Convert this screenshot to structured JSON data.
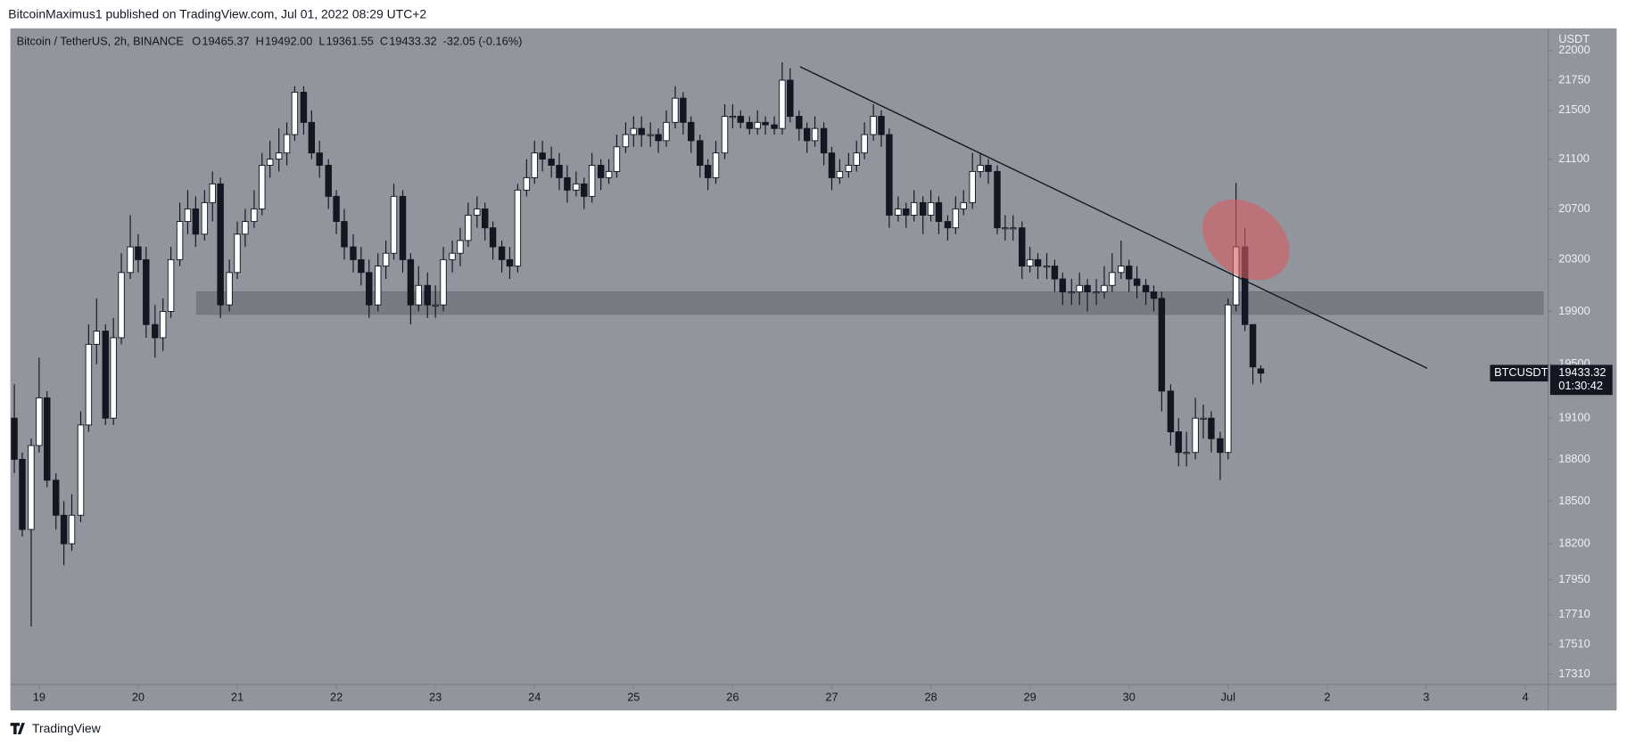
{
  "publisher_line": "BitcoinMaximus1 published on TradingView.com, Jul 01, 2022 08:29 UTC+2",
  "footer": "TradingView",
  "chart_data": {
    "type": "candlestick",
    "title": "Bitcoin / TetherUS, 2h, BINANCE",
    "ohlc_legend": [
      {
        "key": "O",
        "value": "19465.37"
      },
      {
        "key": "H",
        "value": "19492.00"
      },
      {
        "key": "L",
        "value": "19361.55"
      },
      {
        "key": "C",
        "value": "19433.32"
      }
    ],
    "change": "-32.05 (-0.16%)",
    "y_axis_label": "USDT",
    "last_price_label": {
      "symbol": "BTCUSDT",
      "countdown": "01:30:42"
    },
    "log_scale": true,
    "grid": false,
    "up_color": "#ffffff",
    "down_color": "#131722",
    "xlim": [
      18.71,
      34.23
    ],
    "xticks": [
      19,
      20,
      21,
      22,
      23,
      24,
      25,
      26,
      27,
      28,
      29,
      30,
      {
        "value": 31,
        "label": "Jul"
      },
      {
        "value": 32,
        "label": "2"
      },
      {
        "value": 33,
        "label": "3"
      },
      {
        "value": 34,
        "label": "4"
      }
    ],
    "ylim": [
      17241,
      22188
    ],
    "yticks": [
      17310,
      17510,
      17710,
      17950,
      18200,
      18500,
      18800,
      19100,
      19500,
      19900,
      20300,
      20700,
      21100,
      21500,
      21750,
      22000
    ],
    "x": [
      18.75,
      18.83,
      18.92,
      19,
      19.08,
      19.17,
      19.25,
      19.33,
      19.42,
      19.5,
      19.58,
      19.67,
      19.75,
      19.83,
      19.92,
      20,
      20.08,
      20.17,
      20.25,
      20.33,
      20.42,
      20.5,
      20.58,
      20.67,
      20.75,
      20.83,
      20.92,
      21,
      21.08,
      21.17,
      21.25,
      21.33,
      21.42,
      21.5,
      21.58,
      21.67,
      21.75,
      21.83,
      21.92,
      22,
      22.08,
      22.17,
      22.25,
      22.33,
      22.42,
      22.5,
      22.58,
      22.67,
      22.75,
      22.83,
      22.92,
      23,
      23.08,
      23.17,
      23.25,
      23.33,
      23.42,
      23.5,
      23.58,
      23.67,
      23.75,
      23.83,
      23.92,
      24,
      24.08,
      24.17,
      24.25,
      24.33,
      24.42,
      24.5,
      24.58,
      24.67,
      24.75,
      24.83,
      24.92,
      25,
      25.08,
      25.17,
      25.25,
      25.33,
      25.42,
      25.5,
      25.58,
      25.67,
      25.75,
      25.83,
      25.92,
      26,
      26.08,
      26.17,
      26.25,
      26.33,
      26.42,
      26.5,
      26.58,
      26.67,
      26.75,
      26.83,
      26.92,
      27,
      27.08,
      27.17,
      27.25,
      27.33,
      27.42,
      27.5,
      27.58,
      27.67,
      27.75,
      27.83,
      27.92,
      28,
      28.08,
      28.17,
      28.25,
      28.33,
      28.42,
      28.5,
      28.58,
      28.67,
      28.75,
      28.83,
      28.92,
      29,
      29.08,
      29.17,
      29.25,
      29.33,
      29.42,
      29.5,
      29.58,
      29.67,
      29.75,
      29.83,
      29.92,
      30,
      30.08,
      30.17,
      30.25,
      30.33,
      30.42,
      30.5,
      30.58,
      30.67,
      30.75,
      30.83,
      30.92,
      31,
      31.08,
      31.17,
      31.25,
      31.33
    ],
    "open": [
      19100,
      18800,
      18300,
      18900,
      19250,
      18650,
      18400,
      18200,
      18400,
      19050,
      19650,
      19750,
      19100,
      19700,
      20200,
      20400,
      20300,
      19800,
      19700,
      19900,
      20300,
      20600,
      20700,
      20500,
      20750,
      20900,
      19950,
      20200,
      20500,
      20600,
      20700,
      21050,
      21100,
      21150,
      21300,
      21650,
      21400,
      21150,
      21050,
      20800,
      20600,
      20400,
      20300,
      20200,
      19950,
      20250,
      20350,
      20800,
      20300,
      19950,
      20100,
      19950,
      19950,
      20300,
      20350,
      20450,
      20650,
      20700,
      20550,
      20400,
      20300,
      20250,
      20850,
      20950,
      21150,
      21100,
      21050,
      20950,
      20850,
      20900,
      20800,
      21050,
      20950,
      21000,
      21200,
      21300,
      21350,
      21300,
      21300,
      21250,
      21400,
      21600,
      21400,
      21250,
      21050,
      20950,
      21150,
      21450,
      21450,
      21400,
      21350,
      21400,
      21380,
      21350,
      21750,
      21450,
      21350,
      21250,
      21350,
      21150,
      20950,
      21000,
      21050,
      21150,
      21300,
      21450,
      21300,
      20650,
      20700,
      20650,
      20750,
      20650,
      20750,
      20600,
      20550,
      20700,
      20750,
      21000,
      21050,
      21000,
      20550,
      20550,
      20550,
      20250,
      20300,
      20250,
      20250,
      20150,
      20050,
      20050,
      20100,
      20050,
      20050,
      20100,
      20200,
      20250,
      20150,
      20100,
      20050,
      20000,
      19300,
      19000,
      18850,
      18850,
      19100,
      19100,
      18950,
      18850,
      19950,
      20400,
      19800,
      19465.37
    ],
    "high": [
      19350,
      18850,
      18950,
      19550,
      19300,
      18700,
      18500,
      18550,
      19150,
      19800,
      20000,
      19800,
      19850,
      20350,
      20650,
      20500,
      20400,
      19950,
      20000,
      20400,
      20750,
      20850,
      20800,
      20850,
      21000,
      20950,
      20300,
      20600,
      20700,
      20850,
      21150,
      21250,
      21350,
      21400,
      21700,
      21700,
      21500,
      21250,
      21100,
      20850,
      20700,
      20500,
      20400,
      20300,
      20350,
      20450,
      20900,
      20850,
      20350,
      20250,
      20200,
      20100,
      20400,
      20450,
      20550,
      20750,
      20800,
      20750,
      20600,
      20450,
      20400,
      20900,
      21100,
      21250,
      21250,
      21200,
      21150,
      21050,
      21000,
      20950,
      21150,
      21100,
      21100,
      21300,
      21400,
      21450,
      21450,
      21400,
      21350,
      21500,
      21700,
      21650,
      21450,
      21300,
      21100,
      21250,
      21550,
      21550,
      21500,
      21450,
      21500,
      21450,
      21450,
      21900,
      21850,
      21500,
      21400,
      21450,
      21400,
      21200,
      21100,
      21150,
      21250,
      21400,
      21550,
      21500,
      21350,
      20800,
      20750,
      20850,
      20800,
      20850,
      20800,
      20650,
      20800,
      20850,
      21150,
      21150,
      21100,
      21050,
      20650,
      20650,
      20600,
      20400,
      20350,
      20350,
      20300,
      20200,
      20150,
      20200,
      20150,
      20150,
      20250,
      20350,
      20450,
      20300,
      20250,
      20150,
      20100,
      20050,
      19350,
      19100,
      19000,
      19250,
      19200,
      19150,
      19000,
      20000,
      20908,
      20550,
      19800,
      19492
    ],
    "low": [
      18700,
      18250,
      17630,
      18850,
      18600,
      18300,
      18050,
      18150,
      18350,
      19000,
      19500,
      19050,
      19050,
      19650,
      20150,
      20200,
      19700,
      19550,
      19600,
      19850,
      20250,
      20500,
      20400,
      20450,
      20600,
      19850,
      19900,
      20150,
      20400,
      20550,
      20650,
      20950,
      21000,
      21050,
      21250,
      21300,
      21100,
      20950,
      20700,
      20500,
      20300,
      20200,
      20100,
      19850,
      19900,
      20150,
      20300,
      20200,
      19800,
      19900,
      19850,
      19850,
      19900,
      20200,
      20250,
      20400,
      20550,
      20450,
      20300,
      20200,
      20150,
      20200,
      20800,
      20900,
      21000,
      20950,
      20850,
      20750,
      20800,
      20700,
      20750,
      20850,
      20900,
      20950,
      21150,
      21200,
      21200,
      21200,
      21150,
      21200,
      21350,
      21300,
      21150,
      20950,
      20850,
      20900,
      21100,
      21350,
      21350,
      21300,
      21300,
      21300,
      21300,
      21300,
      21400,
      21250,
      21150,
      21200,
      21050,
      20850,
      20900,
      20950,
      21000,
      21100,
      21250,
      21200,
      20550,
      20600,
      20550,
      20600,
      20500,
      20600,
      20500,
      20450,
      20500,
      20650,
      20700,
      20950,
      20900,
      20500,
      20450,
      20450,
      20150,
      20200,
      20150,
      20150,
      20050,
      19950,
      19950,
      19950,
      19900,
      19950,
      20000,
      20050,
      20150,
      20050,
      20000,
      19950,
      19900,
      19150,
      18900,
      18750,
      18750,
      18800,
      18950,
      18850,
      18650,
      18800,
      19900,
      19750,
      19350,
      19361.55
    ],
    "close": [
      18800,
      18300,
      18900,
      19250,
      18650,
      18400,
      18200,
      18400,
      19050,
      19650,
      19750,
      19100,
      19700,
      20200,
      20400,
      20300,
      19800,
      19700,
      19900,
      20300,
      20600,
      20700,
      20500,
      20750,
      20900,
      19950,
      20200,
      20500,
      20600,
      20700,
      21050,
      21100,
      21150,
      21300,
      21650,
      21400,
      21150,
      21050,
      20800,
      20600,
      20400,
      20300,
      20200,
      19950,
      20250,
      20350,
      20800,
      20300,
      19950,
      20100,
      19950,
      19950,
      20300,
      20350,
      20450,
      20650,
      20700,
      20550,
      20400,
      20300,
      20250,
      20850,
      20950,
      21150,
      21100,
      21050,
      20950,
      20850,
      20900,
      20800,
      21050,
      20950,
      21000,
      21200,
      21300,
      21350,
      21300,
      21300,
      21250,
      21400,
      21600,
      21400,
      21250,
      21050,
      20950,
      21150,
      21450,
      21450,
      21400,
      21350,
      21400,
      21380,
      21350,
      21750,
      21450,
      21350,
      21250,
      21350,
      21150,
      20950,
      21000,
      21050,
      21150,
      21300,
      21450,
      21300,
      20650,
      20700,
      20650,
      20750,
      20650,
      20750,
      20600,
      20550,
      20700,
      20750,
      21000,
      21050,
      21000,
      20550,
      20550,
      20550,
      20250,
      20300,
      20250,
      20250,
      20150,
      20050,
      20050,
      20100,
      20050,
      20050,
      20100,
      20200,
      20250,
      20150,
      20100,
      20050,
      20000,
      19300,
      19000,
      18850,
      18850,
      19100,
      19100,
      18950,
      18850,
      19950,
      20400,
      19800,
      19480,
      19433.32
    ],
    "trendline": {
      "x": [
        26.68,
        33.01
      ],
      "values": [
        21863,
        19470
      ],
      "color": "#131722"
    },
    "support_zone": {
      "x": [
        20.59,
        34.18
      ],
      "values": [
        19877,
        20052
      ],
      "color": "rgba(90,92,100,0.45)"
    },
    "highlight": {
      "x": 31.18,
      "value": 20456,
      "color": "rgba(214,92,96,0.6)"
    }
  }
}
